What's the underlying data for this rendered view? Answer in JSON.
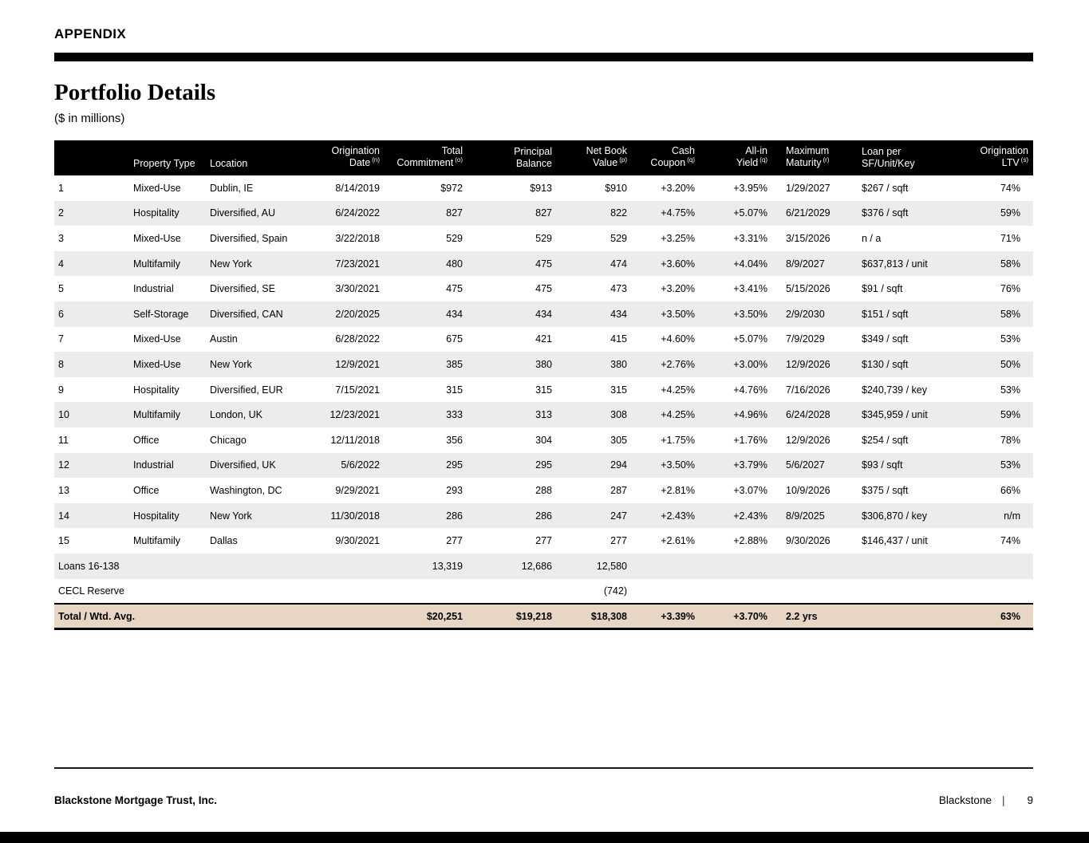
{
  "page": {
    "eyebrow": "APPENDIX",
    "title": "Portfolio Details",
    "subtitle": "($ in millions)"
  },
  "colors": {
    "header_bg": "#000000",
    "row_alt": "#ececec",
    "total_bg": "#e7d6c3"
  },
  "table": {
    "columns": [
      {
        "key": "num",
        "line1": "",
        "line2": "",
        "align": "left"
      },
      {
        "key": "property-type",
        "line1": "",
        "line2": "Property Type",
        "align": "left"
      },
      {
        "key": "location",
        "line1": "",
        "line2": "Location",
        "align": "left"
      },
      {
        "key": "origination-date",
        "line1": "Origination",
        "line2": "Date",
        "sup": "(n)",
        "align": "right"
      },
      {
        "key": "total-commitment",
        "line1": "Total",
        "line2": "Commitment",
        "sup": "(o)",
        "align": "right"
      },
      {
        "key": "principal-balance",
        "line1": "Principal",
        "line2": "Balance",
        "align": "right"
      },
      {
        "key": "net-book-value",
        "line1": "Net Book",
        "line2": "Value",
        "sup": "(p)",
        "align": "right"
      },
      {
        "key": "cash-coupon",
        "line1": "Cash",
        "line2": "Coupon",
        "sup": "(q)",
        "align": "right"
      },
      {
        "key": "all-in-yield",
        "line1": "All-in",
        "line2": "Yield",
        "sup": "(q)",
        "align": "right"
      },
      {
        "key": "maximum-maturity",
        "line1": "Maximum",
        "line2": "Maturity",
        "sup": "(r)",
        "align": "left"
      },
      {
        "key": "loan-per",
        "line1": "Loan per",
        "line2": "SF/Unit/Key",
        "align": "left"
      },
      {
        "key": "origination-ltv",
        "line1": "Origination",
        "line2": "LTV",
        "sup": "(s)",
        "align": "right"
      }
    ],
    "rows": [
      [
        "1",
        "Mixed-Use",
        "Dublin, IE",
        "8/14/2019",
        "$972",
        "$913",
        "$910",
        "+3.20%",
        "+3.95%",
        "1/29/2027",
        "$267 / sqft",
        "74%"
      ],
      [
        "2",
        "Hospitality",
        "Diversified, AU",
        "6/24/2022",
        "827",
        "827",
        "822",
        "+4.75%",
        "+5.07%",
        "6/21/2029",
        "$376 / sqft",
        "59%"
      ],
      [
        "3",
        "Mixed-Use",
        "Diversified, Spain",
        "3/22/2018",
        "529",
        "529",
        "529",
        "+3.25%",
        "+3.31%",
        "3/15/2026",
        "n / a",
        "71%"
      ],
      [
        "4",
        "Multifamily",
        "New York",
        "7/23/2021",
        "480",
        "475",
        "474",
        "+3.60%",
        "+4.04%",
        "8/9/2027",
        "$637,813 / unit",
        "58%"
      ],
      [
        "5",
        "Industrial",
        "Diversified, SE",
        "3/30/2021",
        "475",
        "475",
        "473",
        "+3.20%",
        "+3.41%",
        "5/15/2026",
        "$91 / sqft",
        "76%"
      ],
      [
        "6",
        "Self-Storage",
        "Diversified, CAN",
        "2/20/2025",
        "434",
        "434",
        "434",
        "+3.50%",
        "+3.50%",
        "2/9/2030",
        "$151 / sqft",
        "58%"
      ],
      [
        "7",
        "Mixed-Use",
        "Austin",
        "6/28/2022",
        "675",
        "421",
        "415",
        "+4.60%",
        "+5.07%",
        "7/9/2029",
        "$349 / sqft",
        "53%"
      ],
      [
        "8",
        "Mixed-Use",
        "New York",
        "12/9/2021",
        "385",
        "380",
        "380",
        "+2.76%",
        "+3.00%",
        "12/9/2026",
        "$130 / sqft",
        "50%"
      ],
      [
        "9",
        "Hospitality",
        "Diversified, EUR",
        "7/15/2021",
        "315",
        "315",
        "315",
        "+4.25%",
        "+4.76%",
        "7/16/2026",
        "$240,739 / key",
        "53%"
      ],
      [
        "10",
        "Multifamily",
        "London, UK",
        "12/23/2021",
        "333",
        "313",
        "308",
        "+4.25%",
        "+4.96%",
        "6/24/2028",
        "$345,959 / unit",
        "59%"
      ],
      [
        "11",
        "Office",
        "Chicago",
        "12/11/2018",
        "356",
        "304",
        "305",
        "+1.75%",
        "+1.76%",
        "12/9/2026",
        "$254 / sqft",
        "78%"
      ],
      [
        "12",
        "Industrial",
        "Diversified, UK",
        "5/6/2022",
        "295",
        "295",
        "294",
        "+3.50%",
        "+3.79%",
        "5/6/2027",
        "$93 / sqft",
        "53%"
      ],
      [
        "13",
        "Office",
        "Washington, DC",
        "9/29/2021",
        "293",
        "288",
        "287",
        "+2.81%",
        "+3.07%",
        "10/9/2026",
        "$375 / sqft",
        "66%"
      ],
      [
        "14",
        "Hospitality",
        "New York",
        "11/30/2018",
        "286",
        "286",
        "247",
        "+2.43%",
        "+2.43%",
        "8/9/2025",
        "$306,870 / key",
        "n/m"
      ],
      [
        "15",
        "Multifamily",
        "Dallas",
        "9/30/2021",
        "277",
        "277",
        "277",
        "+2.61%",
        "+2.88%",
        "9/30/2026",
        "$146,437 / unit",
        "74%"
      ]
    ],
    "summary": [
      {
        "name": "loans-16-138",
        "shaded": true,
        "cells": [
          "Loans 16-138",
          "",
          "",
          "",
          "13,319",
          "12,686",
          "12,580",
          "",
          "",
          "",
          "",
          ""
        ]
      },
      {
        "name": "cecl-reserve",
        "shaded": false,
        "cells": [
          "CECL Reserve",
          "",
          "",
          "",
          "",
          "",
          "(742)",
          "",
          "",
          "",
          "",
          ""
        ]
      }
    ],
    "total": {
      "name": "total-wtd-avg",
      "cells": [
        "Total / Wtd. Avg.",
        "",
        "",
        "",
        "$20,251",
        "$19,218",
        "$18,308",
        "+3.39%",
        "+3.70%",
        "2.2 yrs",
        "",
        "63%"
      ]
    }
  },
  "footer": {
    "company": "Blackstone Mortgage Trust, Inc.",
    "brand": "Blackstone",
    "separator": "|",
    "page_number": "9"
  }
}
